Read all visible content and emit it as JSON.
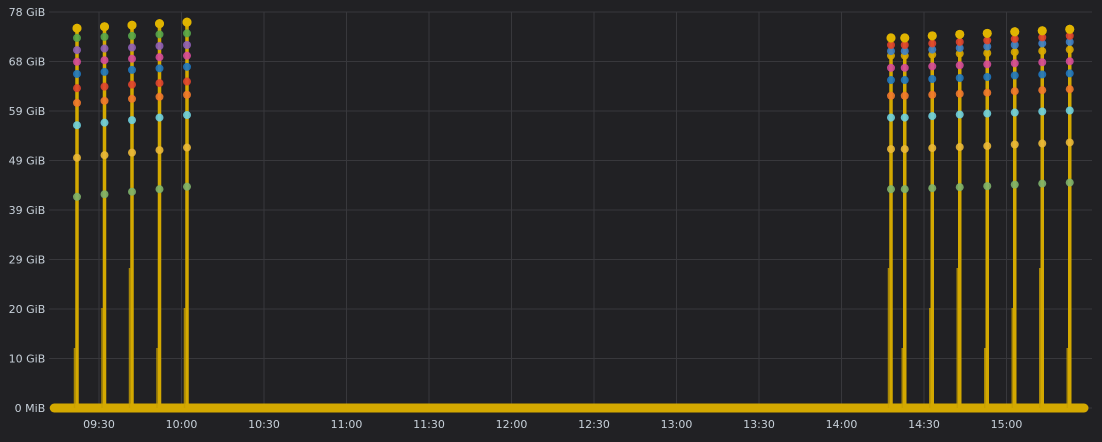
{
  "chart_data": {
    "type": "line",
    "title": "",
    "xlabel": "",
    "ylabel": "",
    "grid": true,
    "legend": "none",
    "y_unit": "GiB",
    "ylim": [
      0,
      78
    ],
    "y_ticks": [
      "0 MiB",
      "10 GiB",
      "20 GiB",
      "29 GiB",
      "39 GiB",
      "49 GiB",
      "59 GiB",
      "68 GiB",
      "78 GiB"
    ],
    "y_tick_values": [
      0,
      9.75,
      19.5,
      29.25,
      39,
      48.75,
      58.5,
      68.25,
      78
    ],
    "xlim": [
      "09:13",
      "15:30"
    ],
    "x_ticks": [
      "09:30",
      "10:00",
      "10:30",
      "11:00",
      "11:30",
      "12:00",
      "12:30",
      "13:00",
      "13:30",
      "14:00",
      "14:30",
      "15:00"
    ],
    "baseline_value": 0,
    "x": [
      "09:22",
      "09:32",
      "09:42",
      "09:52",
      "10:02",
      "14:18",
      "14:23",
      "14:33",
      "14:43",
      "14:53",
      "15:03",
      "15:13",
      "15:23"
    ],
    "series": [
      {
        "color": "#e0b400",
        "values": [
          74.8,
          75.1,
          75.4,
          75.7,
          76.0,
          72.9,
          72.9,
          73.3,
          73.6,
          73.8,
          74.1,
          74.3,
          74.6
        ]
      },
      {
        "color": "#56a64b",
        "values": [
          72.9,
          73.1,
          73.3,
          73.6,
          73.8,
          null,
          null,
          null,
          null,
          null,
          null,
          null,
          null
        ]
      },
      {
        "color": "#8f5fb8",
        "values": [
          70.5,
          70.8,
          71.0,
          71.3,
          71.5,
          null,
          null,
          null,
          null,
          null,
          null,
          null,
          null
        ]
      },
      {
        "color": "#d44a9a",
        "values": [
          68.2,
          68.5,
          68.8,
          69.1,
          69.4,
          67.0,
          67.0,
          67.3,
          67.5,
          67.7,
          67.9,
          68.1,
          68.3
        ]
      },
      {
        "color": "#1f78c1",
        "values": [
          65.8,
          66.2,
          66.6,
          66.9,
          67.2,
          64.6,
          64.6,
          64.8,
          65.0,
          65.2,
          65.5,
          65.7,
          65.9
        ]
      },
      {
        "color": "#e0442f",
        "values": [
          63.0,
          63.3,
          63.7,
          64.0,
          64.3,
          71.5,
          71.5,
          71.8,
          72.1,
          72.4,
          72.7,
          73.0,
          73.3
        ]
      },
      {
        "color": "#f2792c",
        "values": [
          60.1,
          60.5,
          60.9,
          61.3,
          61.7,
          61.5,
          61.5,
          61.7,
          61.9,
          62.1,
          62.4,
          62.6,
          62.8
        ]
      },
      {
        "color": "#6ed0e0",
        "values": [
          55.7,
          56.2,
          56.7,
          57.2,
          57.7,
          57.2,
          57.2,
          57.5,
          57.8,
          58.0,
          58.2,
          58.4,
          58.6
        ]
      },
      {
        "color": "#eab839",
        "values": [
          49.3,
          49.8,
          50.3,
          50.8,
          51.3,
          51.0,
          51.0,
          51.2,
          51.4,
          51.6,
          51.9,
          52.1,
          52.3
        ]
      },
      {
        "color": "#7eb26d",
        "values": [
          41.6,
          42.1,
          42.6,
          43.1,
          43.6,
          43.1,
          43.1,
          43.3,
          43.5,
          43.7,
          44.0,
          44.2,
          44.4
        ]
      },
      {
        "color": "#3d7fc9",
        "values": [
          null,
          null,
          null,
          null,
          null,
          70.3,
          70.3,
          70.6,
          70.9,
          71.2,
          71.5,
          71.8,
          72.1
        ]
      },
      {
        "color": "#d9a800",
        "values": [
          null,
          null,
          null,
          null,
          null,
          69.4,
          69.4,
          69.6,
          69.8,
          69.9,
          70.1,
          70.3,
          70.6
        ]
      }
    ]
  }
}
